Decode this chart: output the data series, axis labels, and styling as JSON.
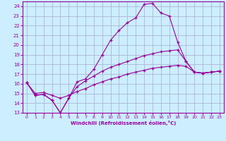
{
  "xlabel": "Windchill (Refroidissement éolien,°C)",
  "background_color": "#cceeff",
  "grid_color": "#aaaacc",
  "line_color": "#990099",
  "xlim": [
    -0.5,
    23.5
  ],
  "ylim": [
    13,
    24.5
  ],
  "xticks": [
    0,
    1,
    2,
    3,
    4,
    5,
    6,
    7,
    8,
    9,
    10,
    11,
    12,
    13,
    14,
    15,
    16,
    17,
    18,
    19,
    20,
    21,
    22,
    23
  ],
  "yticks": [
    13,
    14,
    15,
    16,
    17,
    18,
    19,
    20,
    21,
    22,
    23,
    24
  ],
  "line1_x": [
    0,
    1,
    2,
    3,
    4,
    5,
    6,
    7,
    8,
    9,
    10,
    11,
    12,
    13,
    14,
    15,
    16,
    17,
    18,
    19,
    20,
    21,
    22,
    23
  ],
  "line1_y": [
    16.1,
    14.8,
    14.9,
    14.3,
    13.0,
    14.5,
    16.2,
    16.5,
    17.5,
    19.0,
    20.5,
    21.5,
    22.3,
    22.8,
    24.2,
    24.3,
    23.3,
    23.0,
    20.3,
    18.3,
    17.2,
    17.1,
    17.2,
    17.3
  ],
  "line2_x": [
    0,
    1,
    2,
    3,
    4,
    5,
    6,
    7,
    8,
    9,
    10,
    11,
    12,
    13,
    14,
    15,
    16,
    17,
    18,
    19,
    20,
    21,
    22,
    23
  ],
  "line2_y": [
    16.1,
    14.8,
    14.9,
    14.3,
    13.0,
    14.5,
    15.7,
    16.3,
    16.8,
    17.3,
    17.7,
    18.0,
    18.3,
    18.6,
    18.9,
    19.1,
    19.3,
    19.4,
    19.5,
    18.3,
    17.2,
    17.1,
    17.2,
    17.3
  ],
  "line3_x": [
    0,
    1,
    2,
    3,
    4,
    5,
    6,
    7,
    8,
    9,
    10,
    11,
    12,
    13,
    14,
    15,
    16,
    17,
    18,
    19,
    20,
    21,
    22,
    23
  ],
  "line3_y": [
    16.1,
    15.0,
    15.1,
    14.8,
    14.5,
    14.8,
    15.2,
    15.5,
    15.9,
    16.2,
    16.5,
    16.7,
    17.0,
    17.2,
    17.4,
    17.6,
    17.7,
    17.8,
    17.9,
    17.8,
    17.2,
    17.1,
    17.2,
    17.3
  ]
}
